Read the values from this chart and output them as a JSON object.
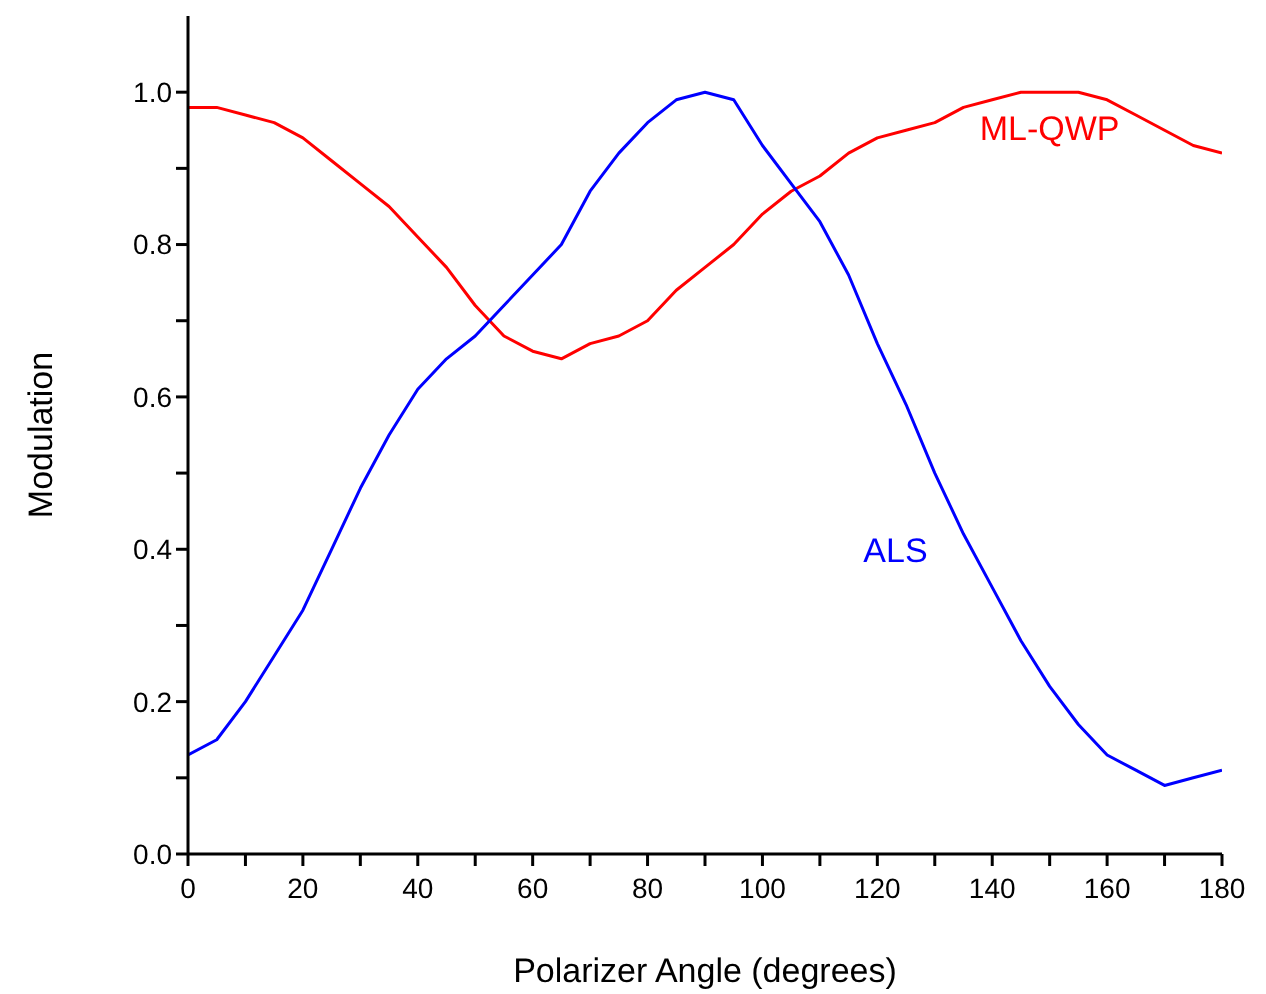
{
  "chart_data": {
    "type": "line",
    "xlabel": "Polarizer Angle (degrees)",
    "ylabel": "Modulation",
    "x": [
      0,
      5,
      10,
      15,
      20,
      25,
      30,
      35,
      40,
      45,
      50,
      55,
      60,
      65,
      70,
      75,
      80,
      85,
      90,
      95,
      100,
      105,
      110,
      115,
      120,
      125,
      130,
      135,
      140,
      145,
      150,
      155,
      160,
      165,
      170,
      175,
      180
    ],
    "series": [
      {
        "name": "ML-QWP",
        "color": "#ff0000",
        "values": [
          0.98,
          0.98,
          0.97,
          0.96,
          0.94,
          0.91,
          0.88,
          0.85,
          0.81,
          0.77,
          0.72,
          0.68,
          0.66,
          0.65,
          0.67,
          0.68,
          0.7,
          0.74,
          0.77,
          0.8,
          0.84,
          0.87,
          0.89,
          0.92,
          0.94,
          0.95,
          0.96,
          0.98,
          0.99,
          1.0,
          1.0,
          1.0,
          0.99,
          0.97,
          0.95,
          0.93,
          0.92
        ]
      },
      {
        "name": "ALS",
        "color": "#0000ff",
        "values": [
          0.13,
          0.15,
          0.2,
          0.26,
          0.32,
          0.4,
          0.48,
          0.55,
          0.61,
          0.65,
          0.68,
          0.72,
          0.76,
          0.8,
          0.87,
          0.92,
          0.96,
          0.99,
          1.0,
          0.99,
          0.93,
          0.88,
          0.83,
          0.76,
          0.67,
          0.59,
          0.5,
          0.42,
          0.35,
          0.28,
          0.22,
          0.17,
          0.13,
          0.11,
          0.09,
          0.1,
          0.11
        ]
      }
    ],
    "xlim": [
      0,
      180
    ],
    "xticks": [
      0,
      {
        "value": 10,
        "label": null
      },
      20,
      {
        "value": 30,
        "label": null
      },
      40,
      {
        "value": 50,
        "label": null
      },
      60,
      {
        "value": 70,
        "label": null
      },
      80,
      {
        "value": 90,
        "label": null
      },
      100,
      {
        "value": 110,
        "label": null
      },
      120,
      {
        "value": 130,
        "label": null
      },
      140,
      {
        "value": 150,
        "label": null
      },
      160,
      {
        "value": 170,
        "label": null
      },
      180
    ],
    "ylim": [
      0,
      1.1
    ],
    "yticks": [
      {
        "value": 0,
        "label": "0.0"
      },
      {
        "value": 0.1,
        "label": null
      },
      {
        "value": 0.2,
        "label": "0.2"
      },
      {
        "value": 0.3,
        "label": null
      },
      {
        "value": 0.4,
        "label": "0.4"
      },
      {
        "value": 0.5,
        "label": null
      },
      {
        "value": 0.6,
        "label": "0.6"
      },
      {
        "value": 0.7,
        "label": null
      },
      {
        "value": 0.8,
        "label": "0.8"
      },
      {
        "value": 0.9,
        "label": null
      },
      {
        "value": 1.0,
        "label": "1.0"
      }
    ],
    "grid": false,
    "legend": false,
    "marker": "none",
    "line_style": "solid"
  }
}
